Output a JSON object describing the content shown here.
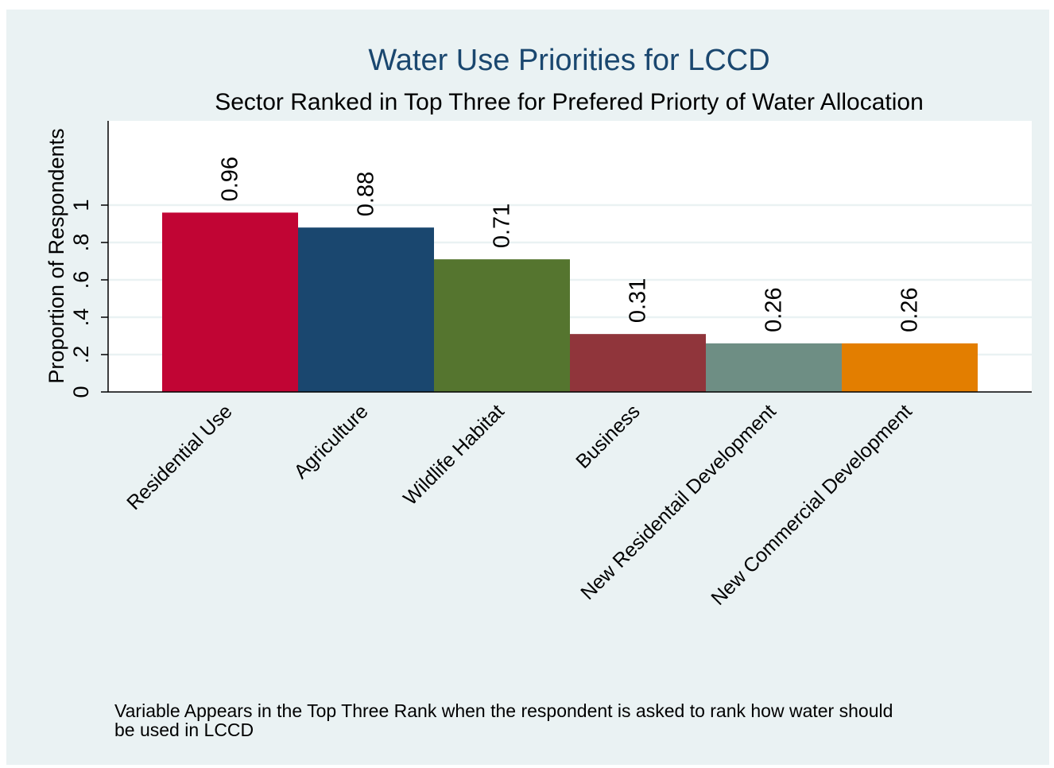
{
  "chart_data": {
    "type": "bar",
    "title": "Water Use Priorities for LCCD",
    "subtitle": "Sector Ranked in Top Three for Prefered Priorty of Water Allocation",
    "xlabel": "",
    "ylabel": "Proportion of Respondents",
    "ylim": [
      0,
      1.0
    ],
    "yticks": [
      {
        "value": 0,
        "label": "0"
      },
      {
        "value": 0.2,
        "label": ".2"
      },
      {
        "value": 0.4,
        "label": ".4"
      },
      {
        "value": 0.6,
        "label": ".6"
      },
      {
        "value": 0.8,
        "label": ".8"
      },
      {
        "value": 1,
        "label": "1"
      }
    ],
    "grid": true,
    "categories": [
      "Residential Use",
      "Agriculture",
      "Wildlife Habitat",
      "Business",
      "New Residentail Development",
      "New Commercial Development"
    ],
    "values": [
      0.96,
      0.88,
      0.71,
      0.31,
      0.26,
      0.26
    ],
    "value_labels": [
      "0.96",
      "0.88",
      "0.71",
      "0.31",
      "0.26",
      "0.26"
    ],
    "colors": [
      "#c10534",
      "#1a476f",
      "#55752f",
      "#90353b",
      "#6e8e84",
      "#e37e00"
    ],
    "note": [
      "Variable Appears in the Top Three Rank when the respondent is asked to rank how water should",
      "be used in LCCD"
    ]
  }
}
